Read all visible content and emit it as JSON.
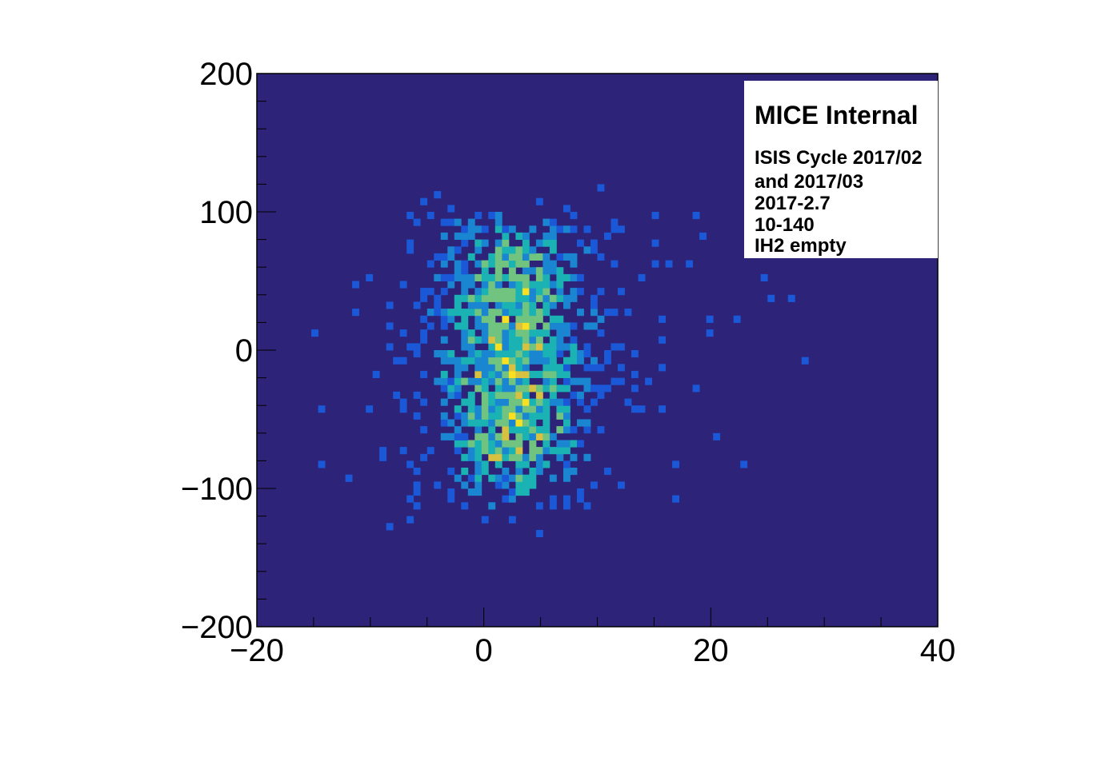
{
  "chart_data": {
    "type": "heatmap",
    "title": "",
    "xlabel": "",
    "ylabel": "",
    "xlim": [
      -20,
      40
    ],
    "ylim": [
      -200,
      200
    ],
    "x_ticks": [
      "−20",
      "0",
      "20",
      "40"
    ],
    "y_ticks": [
      "−200",
      "−100",
      "0",
      "100",
      "200"
    ],
    "colors": {
      "background": "#2d2479",
      "frame": "#000000",
      "colormap": [
        "#1b58d8",
        "#1a86d2",
        "#1bb2b4",
        "#71c480",
        "#d8c040",
        "#f8e020"
      ]
    },
    "distribution": {
      "center_x": 2.5,
      "center_y": -5,
      "core_x_halfwidth": 6,
      "core_y_halfwidth": 115,
      "bin_width_x": 0.6,
      "bin_width_y": 5
    }
  },
  "legend": {
    "title": "MICE Internal",
    "lines": [
      "ISIS Cycle 2017/02",
      "and 2017/03",
      "2017-2.7",
      "10-140",
      "IH2 empty"
    ]
  }
}
